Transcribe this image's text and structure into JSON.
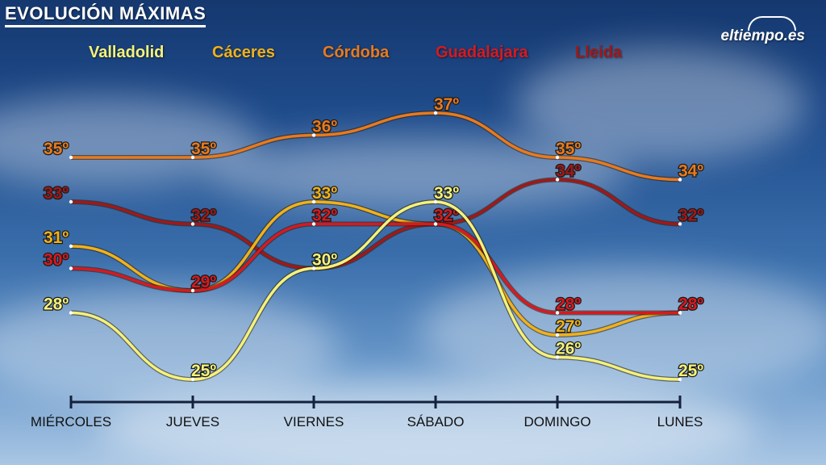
{
  "title": "EVOLUCIÓN MÁXIMAS",
  "logo": "eltiempo.es",
  "chart_data": {
    "type": "line",
    "title": "EVOLUCIÓN MÁXIMAS",
    "categories": [
      "MIÉRCOLES",
      "JUEVES",
      "VIERNES",
      "SÁBADO",
      "DOMINGO",
      "LUNES"
    ],
    "ylim": [
      23,
      39
    ],
    "grid": false,
    "legend_position": "top",
    "value_suffix": "º",
    "series": [
      {
        "name": "Córdoba",
        "color": "#e87a1e",
        "values": [
          35,
          35,
          36,
          37,
          35,
          34
        ]
      },
      {
        "name": "Lleida",
        "color": "#a01818",
        "values": [
          33,
          32,
          30,
          32,
          34,
          32
        ]
      },
      {
        "name": "Cáceres",
        "color": "#f0b21a",
        "values": [
          31,
          29,
          33,
          32,
          27,
          28
        ]
      },
      {
        "name": "Guadalajara",
        "color": "#d8191f",
        "values": [
          30,
          29,
          32,
          32,
          28,
          28
        ]
      },
      {
        "name": "Valladolid",
        "color": "#f4f27a",
        "values": [
          28,
          25,
          30,
          33,
          26,
          25
        ]
      }
    ]
  }
}
